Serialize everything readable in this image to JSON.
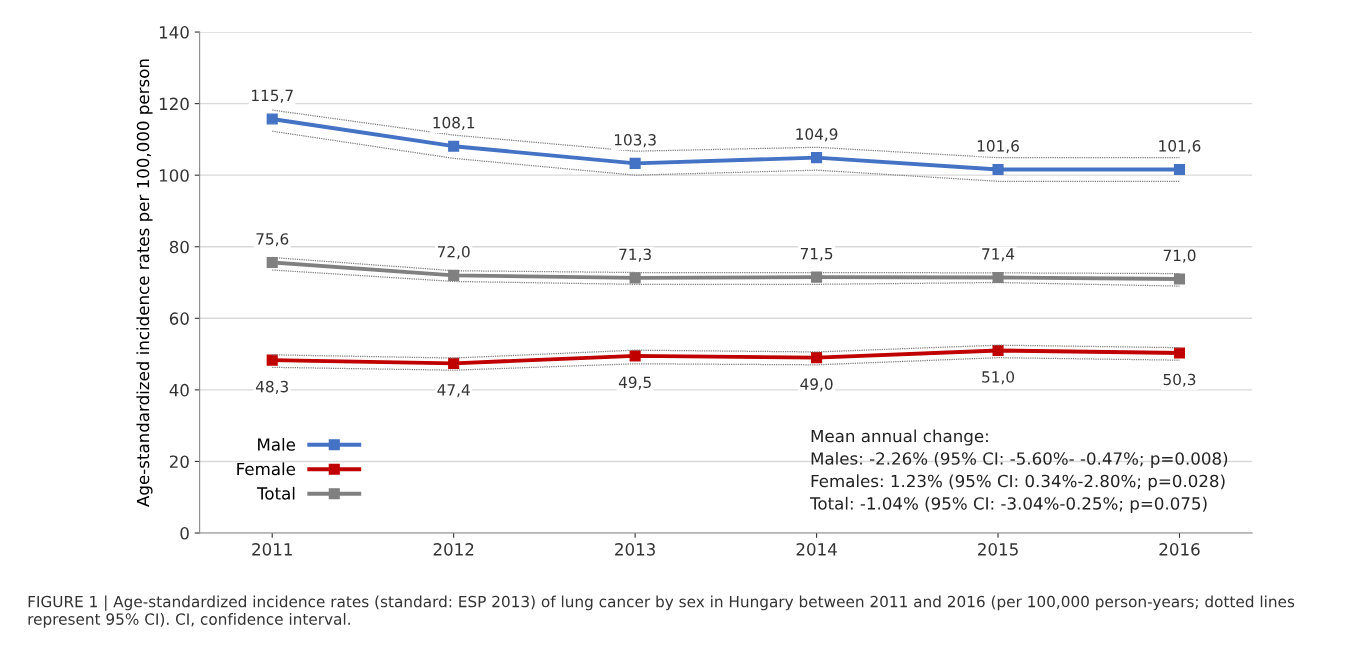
{
  "chart_data": {
    "type": "line",
    "ylabel": "Age-standardized incidence rates per 100,000 person",
    "categories": [
      "2011",
      "2012",
      "2013",
      "2014",
      "2015",
      "2016"
    ],
    "series": [
      {
        "color": "#7f7f7f",
        "line_style": "dotted",
        "marker": "none",
        "values": [
          112.3,
          104.7,
          100.0,
          101.4,
          98.3,
          98.3
        ]
      },
      {
        "color": "#7f7f7f",
        "line_style": "dotted",
        "marker": "none",
        "values": [
          118.2,
          111.2,
          106.7,
          107.8,
          104.9,
          104.9
        ]
      },
      {
        "color": "#7f7f7f",
        "line_style": "dotted",
        "marker": "none",
        "values": [
          46.3,
          45.5,
          47.3,
          47.0,
          49.0,
          48.3
        ]
      },
      {
        "color": "#7f7f7f",
        "line_style": "dotted",
        "marker": "none",
        "values": [
          49.8,
          48.9,
          51.1,
          50.6,
          52.5,
          51.8
        ]
      },
      {
        "color": "#7f7f7f",
        "line_style": "dotted",
        "marker": "none",
        "values": [
          73.5,
          70.3,
          69.5,
          69.5,
          70.0,
          69.0
        ]
      },
      {
        "color": "#7f7f7f",
        "line_style": "dotted",
        "marker": "none",
        "values": [
          77.0,
          73.3,
          72.8,
          72.8,
          72.7,
          72.5
        ]
      },
      {
        "name": "Male",
        "color": "#4472c4",
        "values": [
          115.7,
          108.1,
          103.3,
          104.9,
          101.6,
          101.6
        ],
        "value_labels": [
          "115,7",
          "108,1",
          "103,3",
          "104,9",
          "101,6",
          "101,6"
        ]
      },
      {
        "name": "Female",
        "color": "#c00000",
        "values": [
          48.3,
          47.4,
          49.5,
          49.0,
          51.0,
          50.3
        ],
        "value_labels": [
          "48,3",
          "47,4",
          "49,5",
          "49,0",
          "51,0",
          "50,3"
        ]
      },
      {
        "name": "Total",
        "color": "#808080",
        "values": [
          75.6,
          72.0,
          71.3,
          71.5,
          71.4,
          71.0
        ],
        "value_labels": [
          "75,6",
          "72,0",
          "71,3",
          "71,5",
          "71,4",
          "71,0"
        ]
      }
    ],
    "ylim": [
      0,
      140
    ],
    "yticks": [
      0,
      20,
      40,
      60,
      80,
      100,
      120,
      140
    ],
    "grid": "y",
    "legend": "bottom left",
    "marker": "square",
    "line_style": "solid",
    "annotations": [
      "Mean annual change:\nMales: -2.26% (95% CI: -5.60%- -0.47%; p=0.008)\nFemales: 1.23% (95% CI: 0.34%-2.80%; p=0.028)\nTotal: -1.04% (95% CI: -3.04%-0.25%; p=0.075)",
      "FIGURE 1 | Age-standardized incidence rates (standard: ESP 2013) of lung cancer by sex in Hungary between 2011 and 2016 (per 100,000 person-years; dotted lines represent 95% CI). CI, confidence interval."
    ]
  }
}
